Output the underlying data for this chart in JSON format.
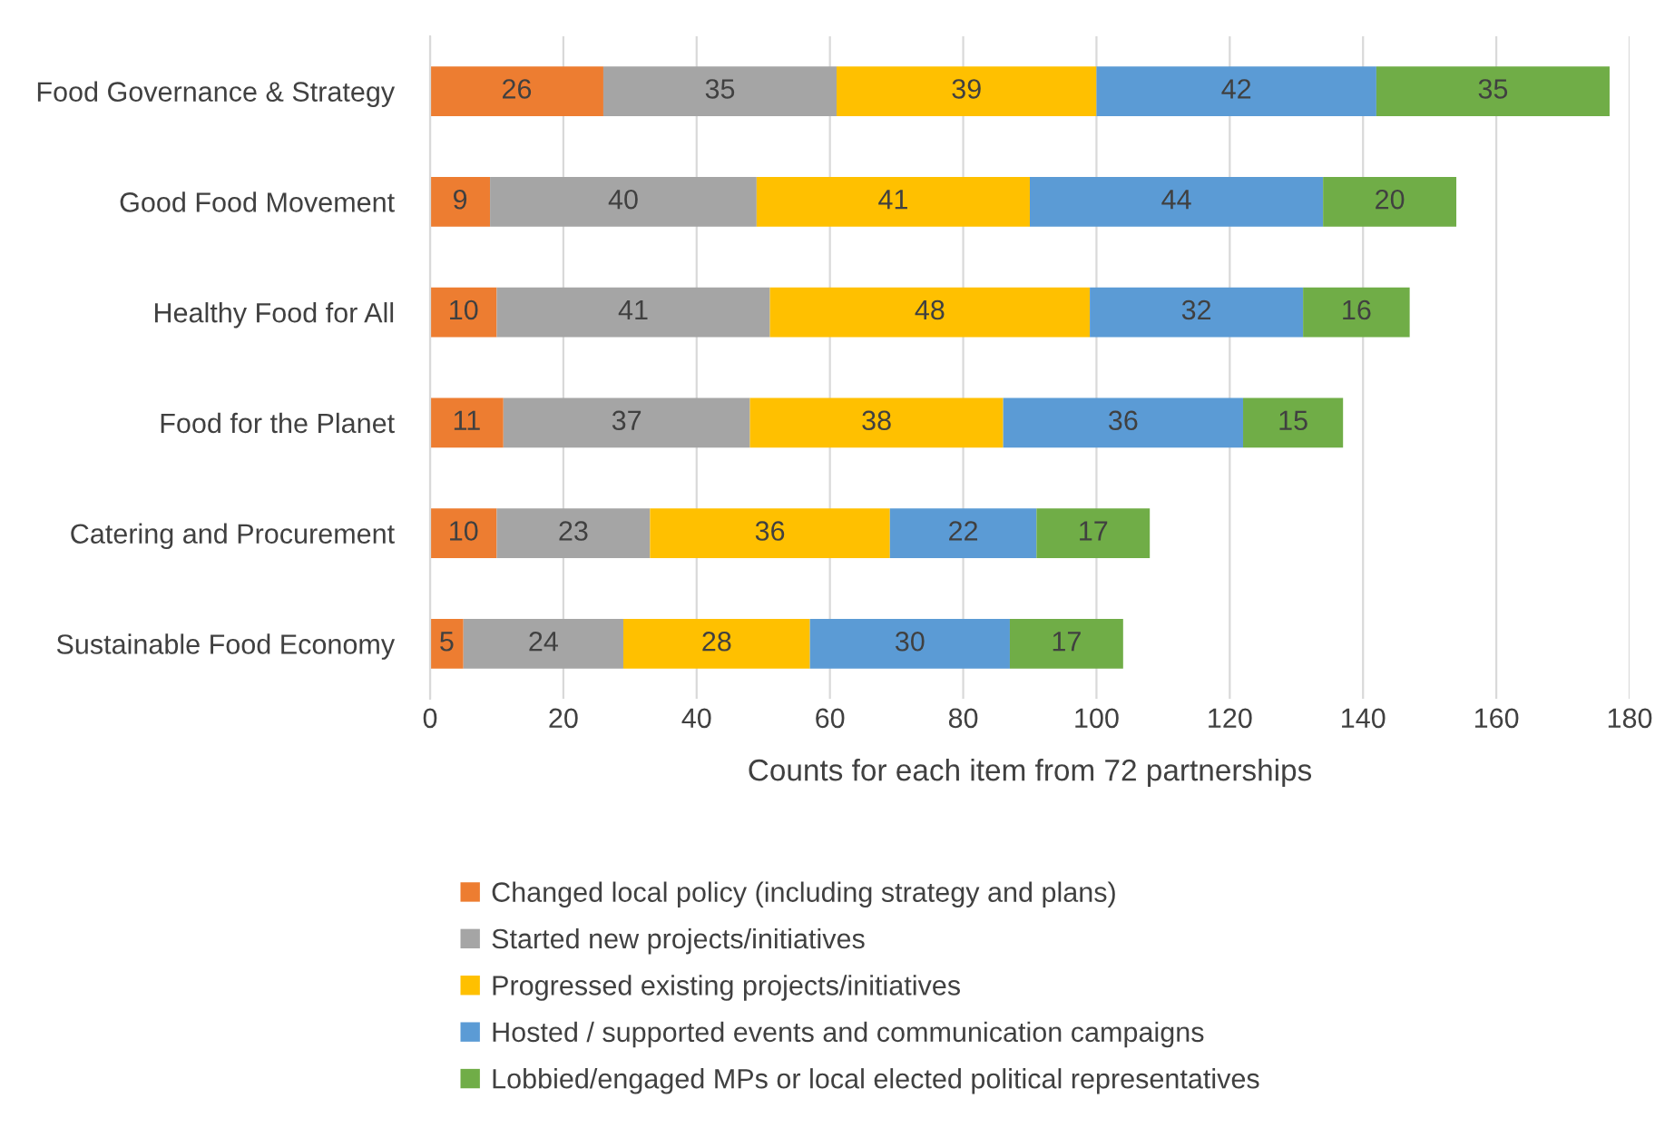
{
  "chart_data": {
    "type": "bar",
    "orientation": "horizontal",
    "stacked": true,
    "xlabel": "Counts for each item from 72 partnerships",
    "categories": [
      "Food Governance & Strategy",
      "Good Food Movement",
      "Healthy Food for All",
      "Food for the Planet",
      "Catering and Procurement",
      "Sustainable Food Economy"
    ],
    "series": [
      {
        "name": "Changed local policy (including strategy and plans)",
        "color": "#ed7d31",
        "values": [
          26,
          9,
          10,
          11,
          10,
          5
        ]
      },
      {
        "name": "Started new projects/initiatives",
        "color": "#a5a5a5",
        "values": [
          35,
          40,
          41,
          37,
          23,
          24
        ]
      },
      {
        "name": "Progressed existing projects/initiatives",
        "color": "#ffc000",
        "values": [
          39,
          41,
          48,
          38,
          36,
          28
        ]
      },
      {
        "name": "Hosted / supported events and communication campaigns",
        "color": "#5b9bd5",
        "values": [
          42,
          44,
          32,
          36,
          22,
          30
        ]
      },
      {
        "name": "Lobbied/engaged MPs or local elected political representatives",
        "color": "#70ad47",
        "values": [
          35,
          20,
          16,
          15,
          17,
          17
        ]
      }
    ],
    "xlim": [
      0,
      180
    ],
    "xticks": [
      0,
      20,
      40,
      60,
      80,
      100,
      120,
      140,
      160,
      180
    ],
    "grid": "x",
    "legend": "bottom",
    "data_labels": true
  }
}
